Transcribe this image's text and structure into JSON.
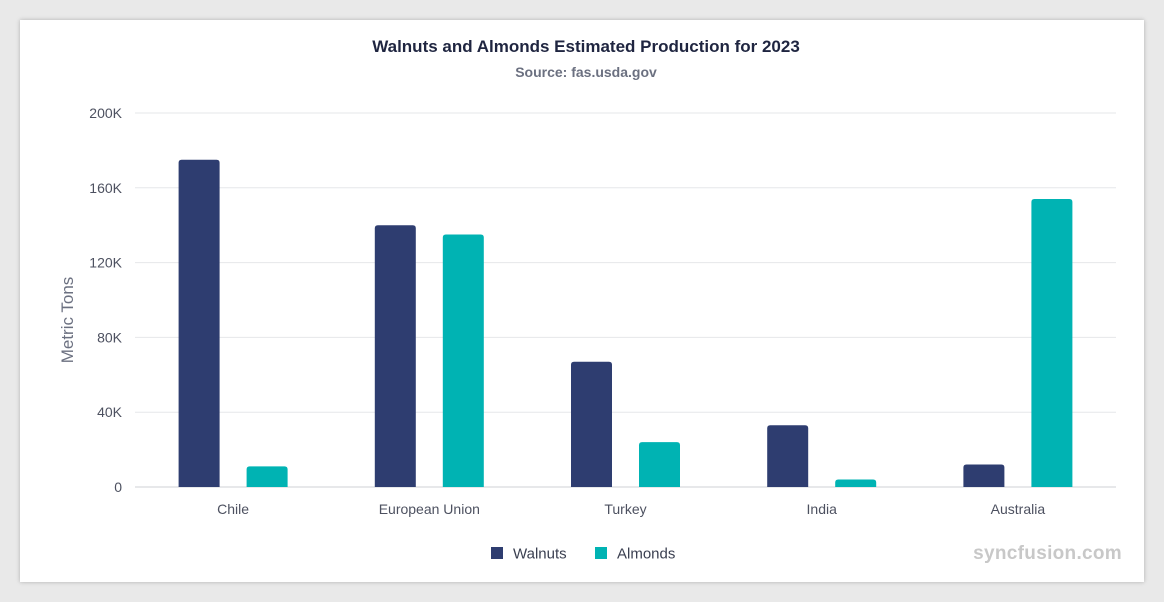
{
  "chart_data": {
    "type": "bar",
    "title": "Walnuts and Almonds Estimated Production for 2023",
    "subtitle": "Source: fas.usda.gov",
    "xlabel": "",
    "ylabel": "Metric Tons",
    "categories": [
      "Chile",
      "European Union",
      "Turkey",
      "India",
      "Australia"
    ],
    "series": [
      {
        "name": "Walnuts",
        "color": "#2e3d70",
        "values": [
          175000,
          140000,
          67000,
          33000,
          12000
        ]
      },
      {
        "name": "Almonds",
        "color": "#00b3b3",
        "values": [
          11000,
          135000,
          24000,
          4000,
          154000
        ]
      }
    ],
    "ylim": [
      0,
      200000
    ],
    "yticks": [
      0,
      40000,
      80000,
      120000,
      160000,
      200000
    ],
    "ytick_labels": [
      "0",
      "40K",
      "80K",
      "120K",
      "160K",
      "200K"
    ],
    "grid": true,
    "legend": "bottom-center"
  },
  "watermark": "syncfusion.com"
}
